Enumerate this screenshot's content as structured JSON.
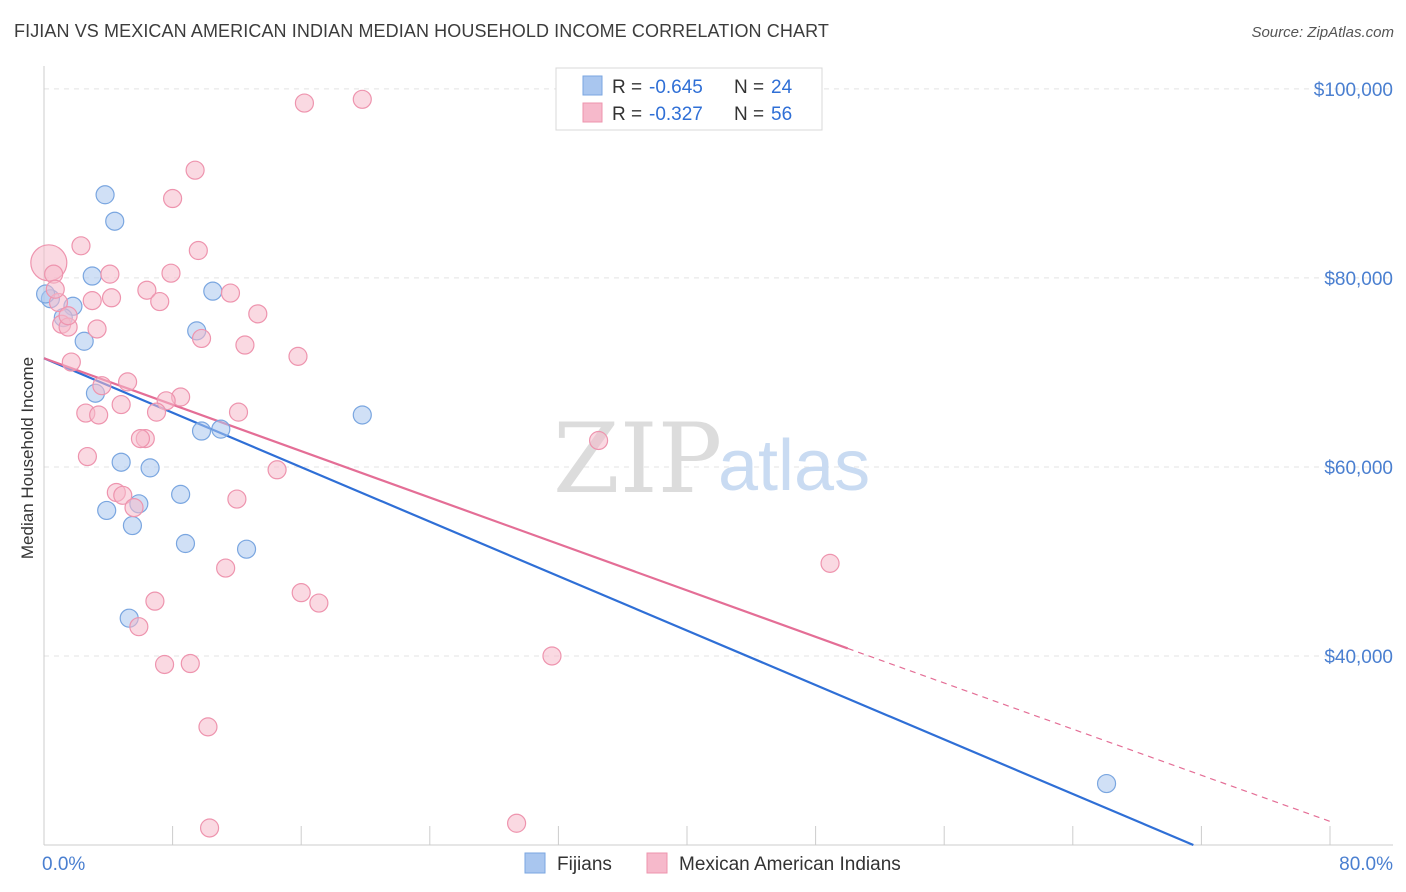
{
  "header": {
    "title": "FIJIAN VS MEXICAN AMERICAN INDIAN MEDIAN HOUSEHOLD INCOME CORRELATION CHART",
    "source": "Source: ZipAtlas.com"
  },
  "watermark": {
    "zip": "ZIP",
    "atlas": "atlas"
  },
  "legend": {
    "rows": [
      {
        "r_label": "R =",
        "r_value": "-0.645",
        "n_label": "N =",
        "n_value": "24",
        "color": "#a9c6ef"
      },
      {
        "r_label": "R =",
        "r_value": "-0.327",
        "n_label": "N =",
        "n_value": "56",
        "color": "#f6b9cb"
      }
    ]
  },
  "bottom_legend": [
    {
      "label": "Fijians",
      "color": "#a9c6ef"
    },
    {
      "label": "Mexican American Indians",
      "color": "#f6b9cb"
    }
  ],
  "chart_data": {
    "type": "scatter",
    "title": "FIJIAN VS MEXICAN AMERICAN INDIAN MEDIAN HOUSEHOLD INCOME CORRELATION CHART",
    "xlabel": "",
    "ylabel": "Median Household Income",
    "xlim": [
      0,
      80
    ],
    "ylim": [
      20000,
      102000
    ],
    "x_tick_labels": [
      "0.0%",
      "80.0%"
    ],
    "y_ticks": [
      40000,
      60000,
      80000,
      100000
    ],
    "y_tick_labels": [
      "$40,000",
      "$60,000",
      "$80,000",
      "$100,000"
    ],
    "grid": true,
    "legend_position": "top-center",
    "series": [
      {
        "name": "Fijians",
        "color": "#a9c6ef",
        "stroke": "#7aa6e0",
        "line_color": "#2f6fd6",
        "trend": {
          "x": [
            0,
            71.5
          ],
          "y": [
            71500,
            20000
          ]
        },
        "points": [
          [
            3.8,
            88800
          ],
          [
            4.4,
            86000
          ],
          [
            3.0,
            80200
          ],
          [
            10.5,
            78600
          ],
          [
            0.4,
            77800
          ],
          [
            1.8,
            77000
          ],
          [
            1.2,
            75800
          ],
          [
            2.5,
            73300
          ],
          [
            9.5,
            74400
          ],
          [
            3.2,
            67800
          ],
          [
            19.8,
            65500
          ],
          [
            9.8,
            63800
          ],
          [
            11.0,
            64000
          ],
          [
            4.8,
            60500
          ],
          [
            6.6,
            59900
          ],
          [
            8.5,
            57100
          ],
          [
            5.9,
            56100
          ],
          [
            3.9,
            55400
          ],
          [
            5.5,
            53800
          ],
          [
            8.8,
            51900
          ],
          [
            12.6,
            51300
          ],
          [
            5.3,
            44000
          ],
          [
            66.1,
            26500
          ],
          [
            0.1,
            78300
          ]
        ]
      },
      {
        "name": "Mexican American Indians",
        "color": "#f6b9cb",
        "stroke": "#ee94ae",
        "line_color": "#e46e96",
        "trend": {
          "x": [
            0,
            50
          ],
          "y": [
            71500,
            40800
          ]
        },
        "trend_dashed": {
          "x": [
            50,
            80
          ],
          "y": [
            40800,
            22500
          ]
        },
        "points": [
          [
            0.3,
            81600
          ],
          [
            0.6,
            80400
          ],
          [
            16.2,
            98500
          ],
          [
            19.8,
            98900
          ],
          [
            9.4,
            91400
          ],
          [
            8.0,
            88400
          ],
          [
            2.3,
            83400
          ],
          [
            9.6,
            82900
          ],
          [
            4.1,
            80400
          ],
          [
            7.9,
            80500
          ],
          [
            6.4,
            78700
          ],
          [
            11.6,
            78400
          ],
          [
            4.2,
            77900
          ],
          [
            3.0,
            77600
          ],
          [
            7.2,
            77500
          ],
          [
            0.9,
            77400
          ],
          [
            13.3,
            76200
          ],
          [
            1.1,
            75100
          ],
          [
            1.5,
            74800
          ],
          [
            3.3,
            74600
          ],
          [
            9.8,
            73600
          ],
          [
            12.5,
            72900
          ],
          [
            15.8,
            71700
          ],
          [
            1.7,
            71100
          ],
          [
            5.2,
            69000
          ],
          [
            3.6,
            68600
          ],
          [
            8.5,
            67400
          ],
          [
            7.6,
            67000
          ],
          [
            4.8,
            66600
          ],
          [
            2.6,
            65700
          ],
          [
            3.4,
            65500
          ],
          [
            7.0,
            65800
          ],
          [
            12.1,
            65800
          ],
          [
            6.3,
            63000
          ],
          [
            6.0,
            63000
          ],
          [
            34.5,
            62800
          ],
          [
            2.7,
            61100
          ],
          [
            14.5,
            59700
          ],
          [
            4.5,
            57300
          ],
          [
            4.9,
            57000
          ],
          [
            12.0,
            56600
          ],
          [
            5.6,
            55700
          ],
          [
            48.9,
            49800
          ],
          [
            11.3,
            49300
          ],
          [
            16.0,
            46700
          ],
          [
            17.1,
            45600
          ],
          [
            6.9,
            45800
          ],
          [
            5.9,
            43100
          ],
          [
            31.6,
            40000
          ],
          [
            7.5,
            39100
          ],
          [
            9.1,
            39200
          ],
          [
            10.2,
            32500
          ],
          [
            10.3,
            21800
          ],
          [
            29.4,
            22300
          ],
          [
            1.5,
            76000
          ],
          [
            0.7,
            78800
          ]
        ]
      }
    ]
  }
}
